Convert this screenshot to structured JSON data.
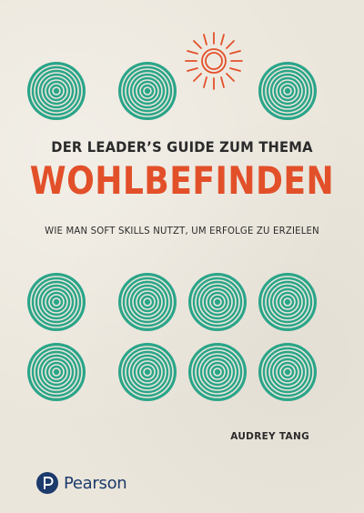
{
  "cover": {
    "subtitle_top": "DER LEADER’S GUIDE ZUM THEMA",
    "title": "WOHLBEFINDEN",
    "tagline": "WIE MAN SOFT SKILLS NUTZT, UM ERFOLGE ZU ERZIELEN",
    "author": "AUDREY TANG",
    "publisher": "Pearson"
  },
  "colors": {
    "title": "#e2502a",
    "circle": "#2aa589",
    "sun": "#e2502a",
    "text": "#2b2b2b",
    "pearson": "#1c3a6b",
    "background": "#ebe6db"
  },
  "icons": {
    "circle": "concentric-circle-icon",
    "sun": "sun-icon",
    "logo": "pearson-logo-icon"
  }
}
